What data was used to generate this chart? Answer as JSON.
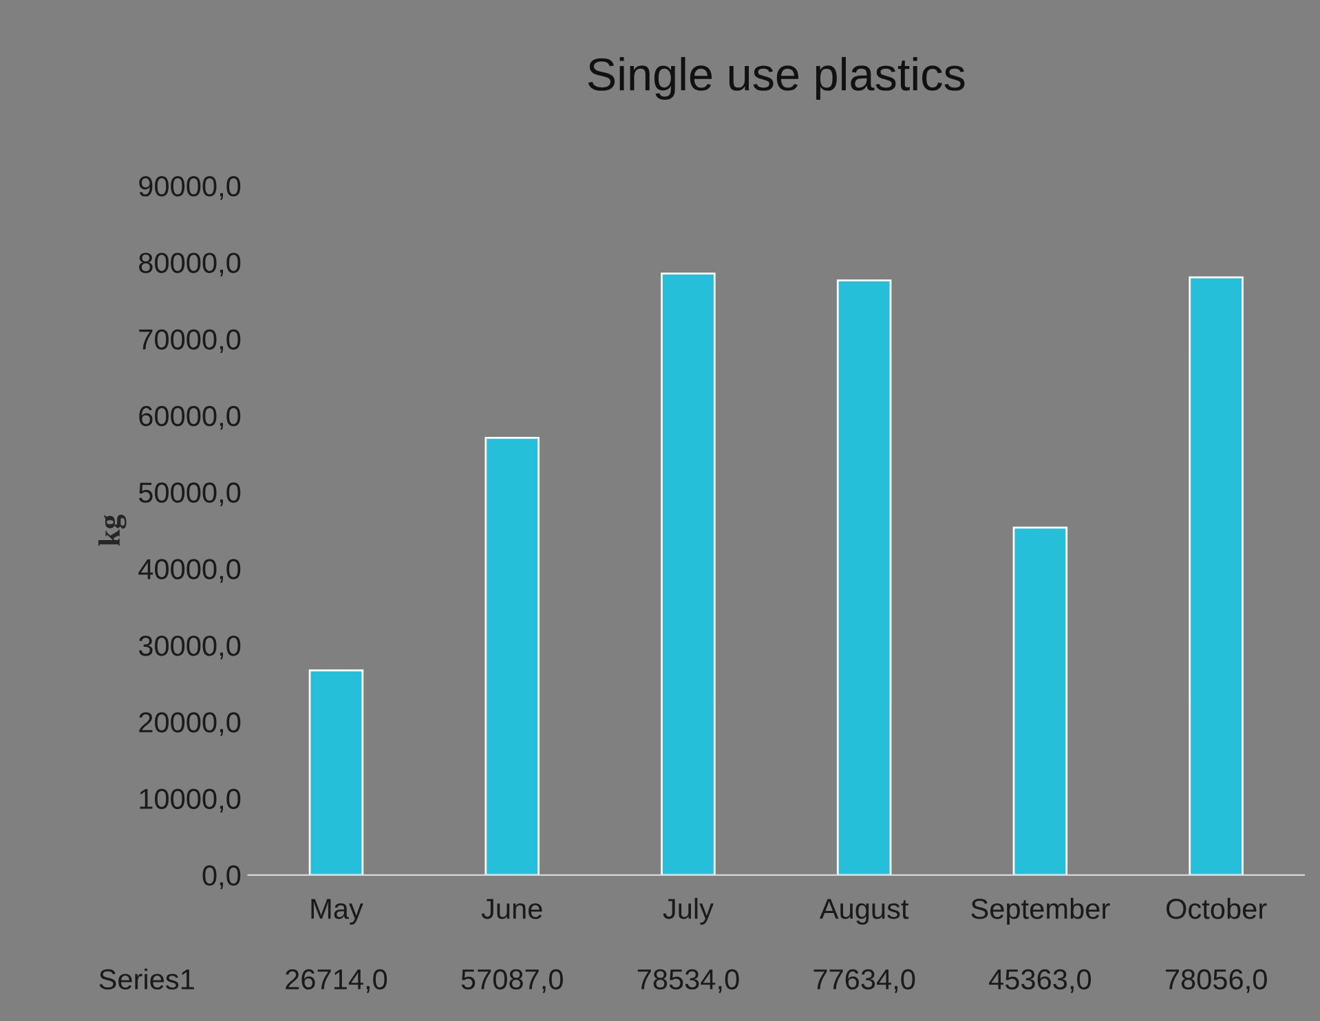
{
  "chart_data": {
    "type": "bar",
    "title": "Single use plastics",
    "ylabel": "kg",
    "categories": [
      "May",
      "June",
      "July",
      "August",
      "September",
      "October"
    ],
    "series": [
      {
        "name": "Series1",
        "color": "#25bfd9",
        "values": [
          26714,
          57087,
          78534,
          77634,
          45363,
          78056
        ],
        "value_labels": [
          "26714,0",
          "57087,0",
          "78534,0",
          "77634,0",
          "45363,0",
          "78056,0"
        ]
      }
    ],
    "ylim": [
      0,
      90000
    ],
    "yticks": [
      {
        "value": 0,
        "label": "0,0"
      },
      {
        "value": 10000,
        "label": "10000,0"
      },
      {
        "value": 20000,
        "label": "20000,0"
      },
      {
        "value": 30000,
        "label": "30000,0"
      },
      {
        "value": 40000,
        "label": "40000,0"
      },
      {
        "value": 50000,
        "label": "50000,0"
      },
      {
        "value": 60000,
        "label": "60000,0"
      },
      {
        "value": 70000,
        "label": "70000,0"
      },
      {
        "value": 80000,
        "label": "80000,0"
      },
      {
        "value": 90000,
        "label": "90000,0"
      }
    ],
    "grid": false,
    "legend": false
  }
}
